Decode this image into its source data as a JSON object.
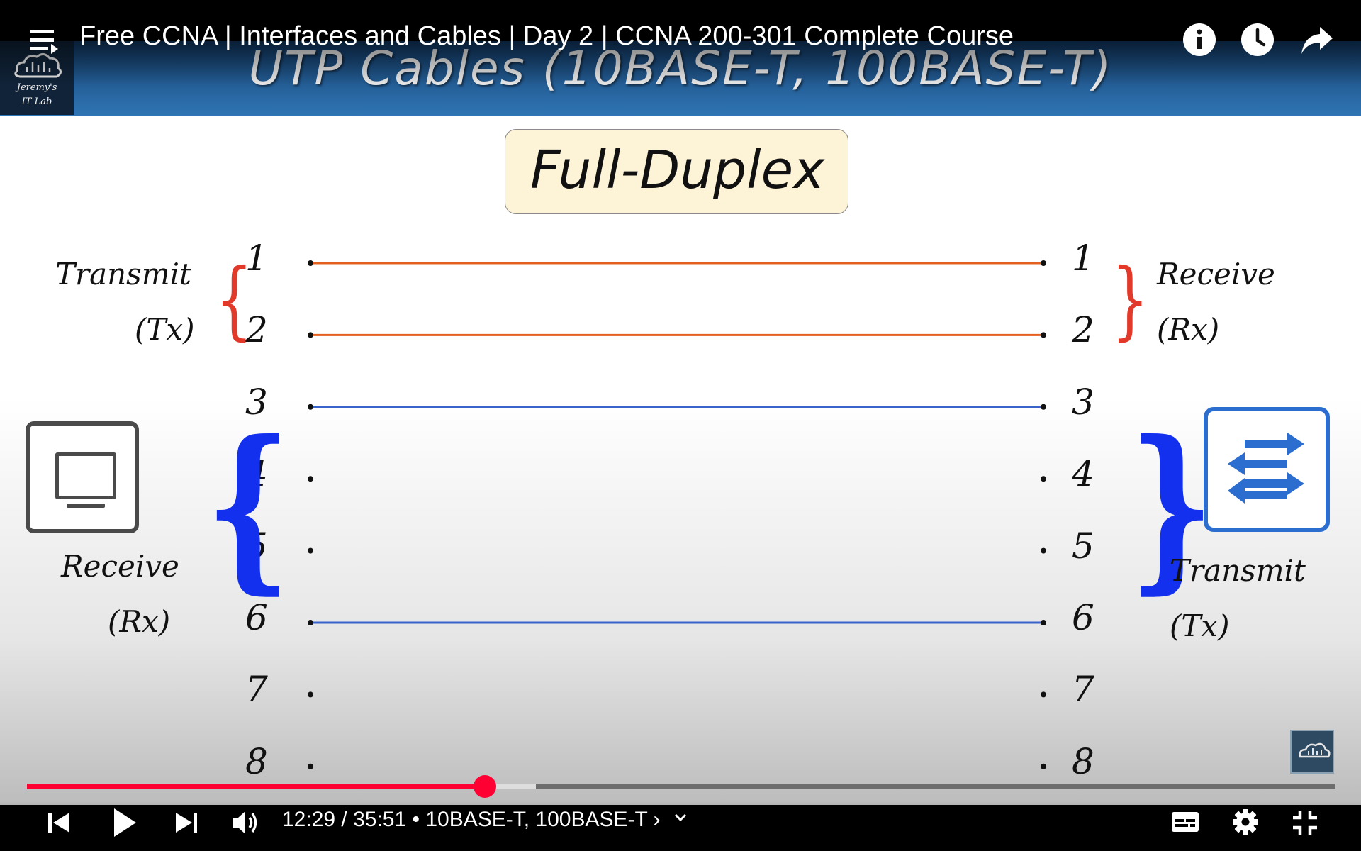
{
  "player": {
    "video_title": "Free CCNA | Interfaces and Cables | Day 2 | CCNA 200-301 Complete Course",
    "current_time": "12:29",
    "time_separator": " / ",
    "duration": "35:51",
    "chapter_separator": " • ",
    "chapter_title": "10BASE-T, 100BASE-T",
    "chapter_chevron": "›",
    "progress_fraction": 0.35,
    "buffered_fraction": 0.389,
    "icons": {
      "menu": "playlist-icon",
      "info": "info-icon",
      "watch_later": "clock-icon",
      "share": "share-icon",
      "prev": "previous-icon",
      "play": "play-icon",
      "next": "next-icon",
      "volume": "volume-icon",
      "chapter_dropdown": "chevron-down-icon",
      "captions": "captions-icon",
      "settings": "gear-icon",
      "fullscreen_exit": "exit-fullscreen-icon"
    },
    "colors": {
      "progress": "#ff0033",
      "buffered": "#dddddd",
      "unplayed": "#6d6d6d"
    }
  },
  "slide": {
    "logo_line1": "Jeremy's",
    "logo_line2": "IT Lab",
    "title": "UTP Cables (10BASE-T, 100BASE-T)",
    "mode_label": "Full-Duplex",
    "left_pins": [
      "1",
      "2",
      "3",
      "4",
      "5",
      "6",
      "7",
      "8"
    ],
    "right_pins": [
      "1",
      "2",
      "3",
      "4",
      "5",
      "6",
      "7",
      "8"
    ],
    "left_tx_label": "Transmit",
    "left_tx_abbr": "(Tx)",
    "left_rx_label": "Receive",
    "left_rx_abbr": "(Rx)",
    "right_rx_label": "Receive",
    "right_rx_abbr": "(Rx)",
    "right_tx_label": "Transmit",
    "right_tx_abbr": "(Tx)",
    "wired_pins": [
      {
        "pin": 1,
        "color": "#e4601f"
      },
      {
        "pin": 2,
        "color": "#e4601f"
      },
      {
        "pin": 3,
        "color": "#3a63c9"
      },
      {
        "pin": 6,
        "color": "#3a63c9"
      }
    ],
    "colors": {
      "tx_pair_bracket": "#e23a2a",
      "rx_pair_bracket": "#1230ee",
      "switch": "#2b6ed0",
      "pc": "#4a4a4a"
    }
  }
}
